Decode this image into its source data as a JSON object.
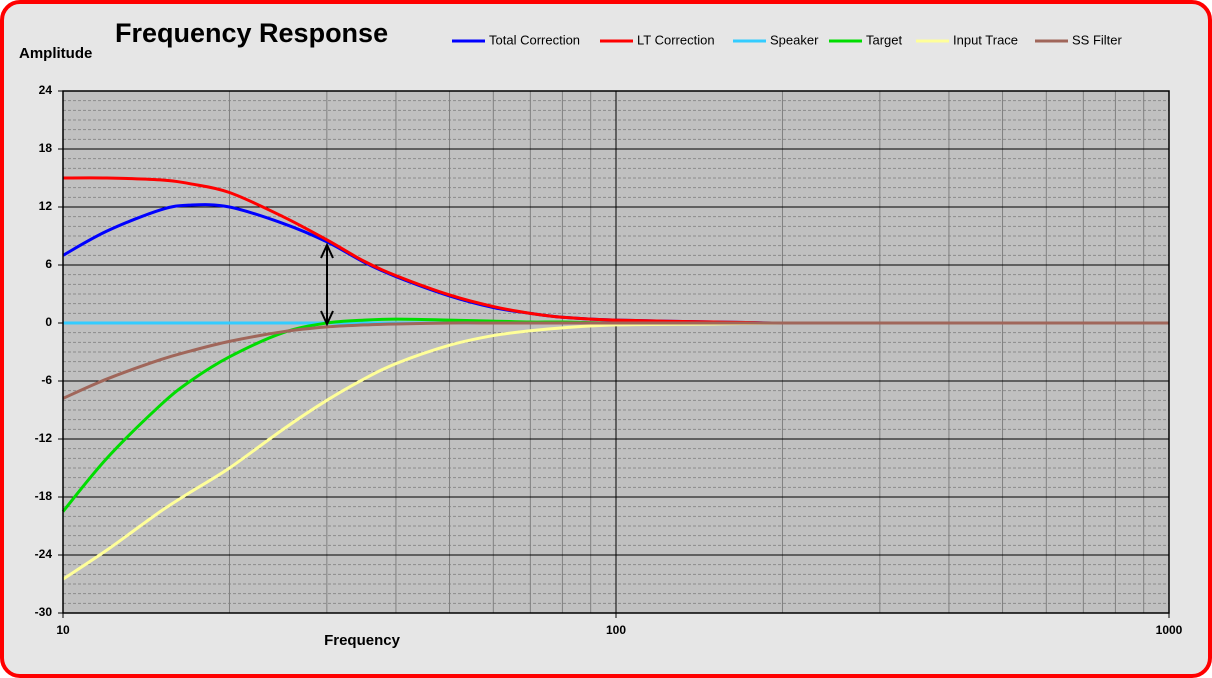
{
  "chart_data": {
    "type": "line",
    "title": "Frequency Response",
    "y_label": "Amplitude",
    "x_label": "Frequency",
    "x": [
      10,
      12,
      15,
      17,
      20,
      25,
      30,
      35,
      40,
      50,
      60,
      70,
      80,
      100,
      150,
      200,
      300,
      500,
      1000
    ],
    "series": [
      {
        "name": "Total Correction",
        "color": "#0000ff",
        "values": [
          7.0,
          9.5,
          11.7,
          12.2,
          12.0,
          10.3,
          8.4,
          6.3,
          4.8,
          2.8,
          1.6,
          1.0,
          0.6,
          0.3,
          0.1,
          0,
          0,
          0,
          0
        ]
      },
      {
        "name": "LT Correction",
        "color": "#ff0000",
        "values": [
          15,
          15,
          14.8,
          14.4,
          13.5,
          11,
          8.6,
          6.4,
          4.9,
          2.9,
          1.7,
          1.0,
          0.6,
          0.3,
          0.1,
          0,
          0,
          0,
          0
        ]
      },
      {
        "name": "Speaker",
        "color": "#33ccff",
        "values": [
          0,
          0,
          0,
          0,
          0,
          0,
          0,
          0,
          0,
          0,
          0,
          0,
          0,
          0,
          0,
          0,
          0,
          0,
          0
        ]
      },
      {
        "name": "Target",
        "color": "#00dd00",
        "values": [
          -19.5,
          -14,
          -8.5,
          -6,
          -3.5,
          -1,
          0,
          0.3,
          0.4,
          0.3,
          0.2,
          0.1,
          0.1,
          0,
          0,
          0,
          0,
          0,
          0
        ]
      },
      {
        "name": "Input Trace",
        "color": "#ffff99",
        "values": [
          -26.5,
          -23.5,
          -19.5,
          -17.5,
          -15,
          -11,
          -8,
          -5.8,
          -4.2,
          -2.3,
          -1.3,
          -0.8,
          -0.5,
          -0.2,
          -0.1,
          0,
          0,
          0,
          0
        ]
      },
      {
        "name": "SS Filter",
        "color": "#a0665a",
        "values": [
          -7.8,
          -5.8,
          -3.8,
          -2.9,
          -1.9,
          -0.9,
          -0.4,
          -0.2,
          -0.1,
          0,
          0,
          0,
          0,
          0,
          0,
          0,
          0,
          0,
          0
        ]
      }
    ],
    "xlog": true,
    "xlim": [
      10,
      1000
    ],
    "xticks": [
      10,
      100,
      1000
    ],
    "xminorticks": [
      20,
      30,
      40,
      50,
      60,
      70,
      80,
      90,
      200,
      300,
      400,
      500,
      600,
      700,
      800,
      900
    ],
    "ylim": [
      -30,
      24
    ],
    "yticks": [
      -30,
      -24,
      -18,
      -12,
      -6,
      0,
      6,
      12,
      18,
      24
    ],
    "yminorticks": [
      -29,
      -28,
      -27,
      -26,
      -25,
      -23,
      -22,
      -21,
      -20,
      -19,
      -17,
      -16,
      -15,
      -14,
      -13,
      -11,
      -10,
      -9,
      -8,
      -7,
      -5,
      -4,
      -3,
      -2,
      -1,
      1,
      2,
      3,
      4,
      5,
      7,
      8,
      9,
      10,
      11,
      13,
      14,
      15,
      16,
      17,
      19,
      20,
      21,
      22,
      23
    ],
    "grid": true
  }
}
